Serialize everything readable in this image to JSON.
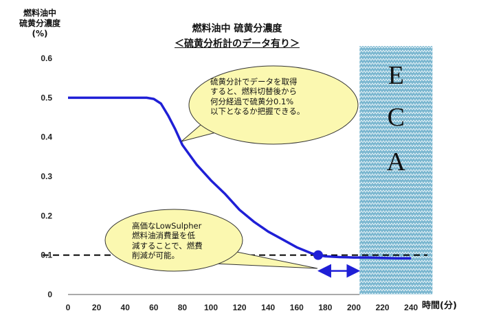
{
  "chart_data": {
    "type": "line",
    "title": "燃料油中 硫黄分濃度",
    "subtitle": "＜硫黄分析計のデータ有り＞",
    "ylabel_lines": [
      "燃料油中",
      "硫黄分濃度",
      "(%)"
    ],
    "xlabel": "時間(分)",
    "xlim": [
      0,
      240
    ],
    "ylim": [
      0,
      0.6
    ],
    "x_ticks": [
      "0",
      "20",
      "40",
      "60",
      "80",
      "100",
      "120",
      "140",
      "160",
      "180",
      "200",
      "220",
      "240"
    ],
    "y_ticks": [
      "0",
      "0.1",
      "0.2",
      "0.3",
      "0.4",
      "0.5",
      "0.6"
    ],
    "grid": false,
    "series": [
      {
        "color": "#1f1fd6",
        "x": [
          0,
          20,
          40,
          50,
          55,
          60,
          65,
          70,
          75,
          80,
          90,
          100,
          110,
          120,
          130,
          140,
          150,
          160,
          170,
          175,
          180,
          190,
          200,
          210,
          220,
          230,
          240
        ],
        "y": [
          0.5,
          0.5,
          0.5,
          0.5,
          0.5,
          0.497,
          0.485,
          0.455,
          0.42,
          0.38,
          0.33,
          0.29,
          0.255,
          0.215,
          0.185,
          0.16,
          0.14,
          0.12,
          0.105,
          0.1,
          0.097,
          0.095,
          0.094,
          0.094,
          0.093,
          0.092,
          0.092
        ]
      }
    ],
    "reference_line": {
      "y": 0.1,
      "style": "dashed",
      "color": "#000000"
    },
    "marker_point": {
      "x": 175,
      "y": 0.1,
      "color": "#1f1fd6"
    },
    "arrow": {
      "x_start": 175,
      "x_end": 204,
      "y": 0.06,
      "color": "#1f1fd6"
    },
    "shaded_region": {
      "x_start": 204,
      "x_end": 255,
      "label": [
        "E",
        "C",
        "A"
      ],
      "color": "#5fa8c8"
    },
    "annotations": [
      {
        "lines": [
          "硫黄分計でデータを取得",
          "すると、燃料切替後から",
          "何分経過で硫黄分0.1%",
          "以下となるか把握できる。"
        ],
        "fill": "#fbf8b0"
      },
      {
        "lines": [
          "高価なLowSulpher",
          "燃料油消費量を低",
          "減することで、燃費",
          "削減が可能。"
        ],
        "fill": "#fbf8b0"
      }
    ]
  }
}
